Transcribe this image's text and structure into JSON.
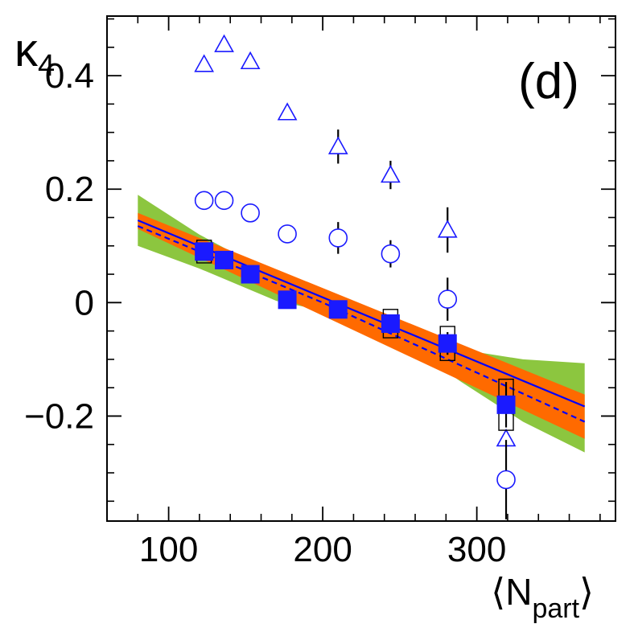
{
  "chart_data": {
    "type": "scatter",
    "panel_label": "(d)",
    "xlabel": {
      "open": "⟨",
      "main": "N",
      "sub": "part",
      "close": "⟩"
    },
    "ylabel": {
      "main": "κ",
      "sub": "4"
    },
    "xlim": [
      60,
      390
    ],
    "ylim": [
      -0.385,
      0.505
    ],
    "x_major_ticks": [
      100,
      200,
      300
    ],
    "x_tick_labels": [
      "100",
      "200",
      "300"
    ],
    "x_minor_step": 20,
    "y_major_ticks": [
      0.4,
      0.2,
      0,
      -0.2
    ],
    "y_tick_labels": [
      "0.4",
      "0.2",
      "0",
      "−0.2"
    ],
    "y_minor_step": 0.05,
    "colors": {
      "green_band": "#8cc63f",
      "orange_band": "#ff6a00",
      "blue": "#0000ff",
      "marker_blue": "#1a1aff",
      "axis": "#000000"
    },
    "bands": [
      {
        "name": "green-band",
        "upper": [
          [
            80,
            0.19
          ],
          [
            120,
            0.12
          ],
          [
            170,
            0.047
          ],
          [
            210,
            -0.006
          ],
          [
            250,
            -0.048
          ],
          [
            290,
            -0.083
          ],
          [
            330,
            -0.1
          ],
          [
            370,
            -0.107
          ]
        ],
        "lower": [
          [
            370,
            -0.264
          ],
          [
            330,
            -0.21
          ],
          [
            290,
            -0.14
          ],
          [
            250,
            -0.065
          ],
          [
            210,
            -0.02
          ],
          [
            170,
            0.003
          ],
          [
            120,
            0.06
          ],
          [
            80,
            0.1
          ]
        ]
      },
      {
        "name": "orange-band",
        "upper": [
          [
            80,
            0.158
          ],
          [
            370,
            -0.162
          ]
        ],
        "lower": [
          [
            370,
            -0.24
          ],
          [
            80,
            0.13
          ]
        ]
      }
    ],
    "lines": [
      {
        "name": "fit-line-solid",
        "style": "solid",
        "points": [
          [
            80,
            0.145
          ],
          [
            370,
            -0.183
          ]
        ]
      },
      {
        "name": "fit-line-dashed",
        "style": "dashed",
        "points": [
          [
            80,
            0.135
          ],
          [
            200,
            0.0
          ],
          [
            370,
            -0.21
          ]
        ]
      }
    ],
    "series": [
      {
        "name": "triangles",
        "marker": "open-triangle",
        "points": [
          {
            "x": 123,
            "y": 0.42,
            "err": 0
          },
          {
            "x": 136,
            "y": 0.455,
            "err": 0
          },
          {
            "x": 153,
            "y": 0.425,
            "err": 0
          },
          {
            "x": 177,
            "y": 0.335,
            "err": 0
          },
          {
            "x": 210,
            "y": 0.275,
            "err": 0.03
          },
          {
            "x": 244,
            "y": 0.225,
            "err": 0.025
          },
          {
            "x": 281,
            "y": 0.128,
            "err": 0.04
          },
          {
            "x": 319,
            "y": -0.24,
            "err": 0
          }
        ]
      },
      {
        "name": "circles",
        "marker": "open-circle",
        "points": [
          {
            "x": 123,
            "y": 0.18,
            "err": 0
          },
          {
            "x": 136,
            "y": 0.18,
            "err": 0
          },
          {
            "x": 153,
            "y": 0.158,
            "err": 0
          },
          {
            "x": 177,
            "y": 0.121,
            "err": 0
          },
          {
            "x": 210,
            "y": 0.114,
            "err": 0.028
          },
          {
            "x": 244,
            "y": 0.086,
            "err": 0.024
          },
          {
            "x": 281,
            "y": 0.006,
            "err": 0.038
          },
          {
            "x": 319,
            "y": -0.312,
            "err": 0.07
          }
        ]
      },
      {
        "name": "squares",
        "marker": "filled-square",
        "points": [
          {
            "x": 123,
            "y": 0.09,
            "err": 0.015,
            "sys": 0.02
          },
          {
            "x": 136,
            "y": 0.075,
            "err": 0.012,
            "sys": 0.012
          },
          {
            "x": 153,
            "y": 0.05,
            "err": 0.008,
            "sys": 0.008
          },
          {
            "x": 177,
            "y": 0.005,
            "err": 0.008,
            "sys": 0.008
          },
          {
            "x": 210,
            "y": -0.012,
            "err": 0.01,
            "sys": 0.01
          },
          {
            "x": 244,
            "y": -0.037,
            "err": 0.012,
            "sys": 0.025
          },
          {
            "x": 281,
            "y": -0.072,
            "err": 0.02,
            "sys": 0.03
          },
          {
            "x": 319,
            "y": -0.18,
            "err": 0.04,
            "sys": 0.045
          }
        ]
      }
    ]
  }
}
